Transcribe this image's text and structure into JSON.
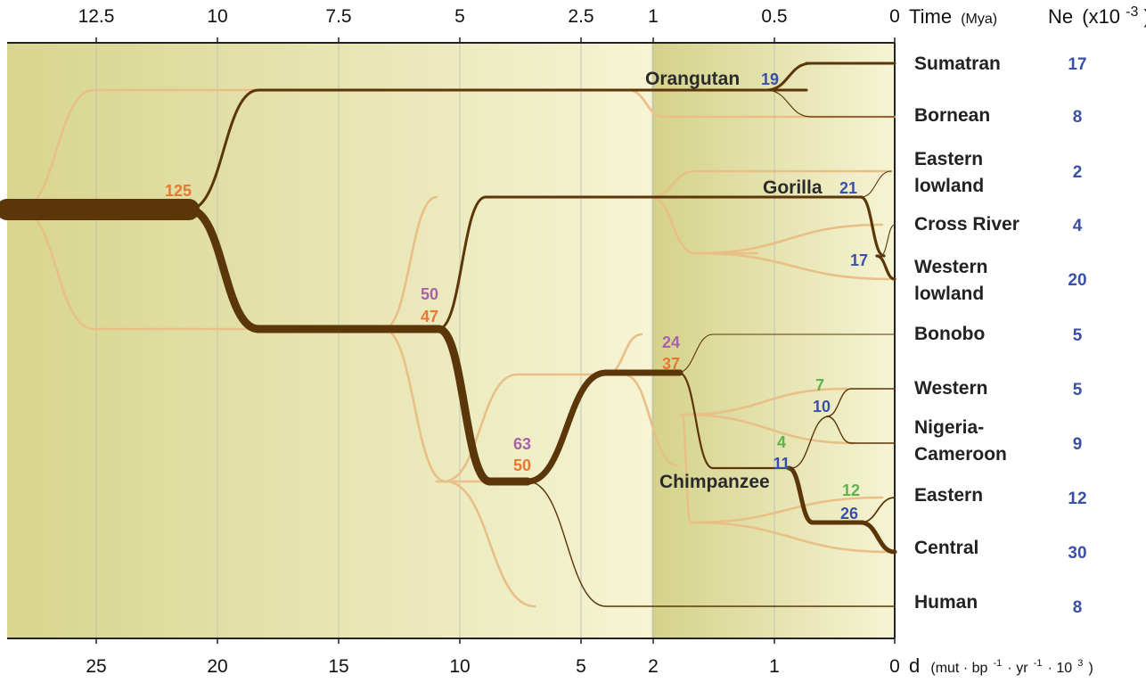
{
  "chart_data": {
    "type": "tree",
    "time_axis": {
      "label": "Time",
      "unit": "(Mya)",
      "ticks": [
        "12.5",
        "10",
        "7.5",
        "5",
        "2.5",
        "1",
        "0.5",
        "0"
      ]
    },
    "d_axis": {
      "label": "d",
      "unit_parts": [
        "(mut · bp",
        "-1",
        " · yr",
        "-1",
        " · 10",
        "3",
        ")"
      ],
      "ticks": [
        "25",
        "20",
        "15",
        "10",
        "5",
        "2",
        "1",
        "0"
      ]
    },
    "ne_header": {
      "label": "Ne",
      "unit": "(x10",
      "exp": "-3",
      "close": ")"
    },
    "leaves": [
      {
        "lines": [
          "Sumatran"
        ],
        "ne": "17"
      },
      {
        "lines": [
          "Bornean"
        ],
        "ne": "8"
      },
      {
        "lines": [
          "Eastern",
          "lowland"
        ],
        "ne": "2"
      },
      {
        "lines": [
          "Cross River"
        ],
        "ne": "4"
      },
      {
        "lines": [
          "Western",
          "lowland"
        ],
        "ne": "20"
      },
      {
        "lines": [
          "Bonobo"
        ],
        "ne": "5"
      },
      {
        "lines": [
          "Western"
        ],
        "ne": "5"
      },
      {
        "lines": [
          "Nigeria-",
          "Cameroon"
        ],
        "ne": "9"
      },
      {
        "lines": [
          "Eastern"
        ],
        "ne": "12"
      },
      {
        "lines": [
          "Central"
        ],
        "ne": "30"
      },
      {
        "lines": [
          "Human"
        ],
        "ne": "8"
      }
    ],
    "clade_labels": [
      "Orangutan",
      "Gorilla",
      "Chimpanzee"
    ],
    "annotations": [
      {
        "text": "125",
        "color": "orange"
      },
      {
        "text": "50",
        "color": "purple"
      },
      {
        "text": "47",
        "color": "orange"
      },
      {
        "text": "63",
        "color": "purple"
      },
      {
        "text": "50",
        "color": "orange"
      },
      {
        "text": "24",
        "color": "purple"
      },
      {
        "text": "37",
        "color": "orange"
      },
      {
        "text": "19",
        "color": "blue"
      },
      {
        "text": "21",
        "color": "blue"
      },
      {
        "text": "17",
        "color": "blue"
      },
      {
        "text": "7",
        "color": "green"
      },
      {
        "text": "10",
        "color": "blue"
      },
      {
        "text": "4",
        "color": "green"
      },
      {
        "text": "11",
        "color": "blue"
      },
      {
        "text": "12",
        "color": "green"
      },
      {
        "text": "26",
        "color": "blue"
      }
    ],
    "colors": {
      "tree": "#5a3608",
      "shadow_tree": "#e8bf86",
      "orange": "#e87830",
      "purple": "#a862a8",
      "blue": "#3a4fa8",
      "green": "#5cb54a",
      "background_dark": "#d7d58e",
      "background_light": "#f6f4d4"
    }
  }
}
